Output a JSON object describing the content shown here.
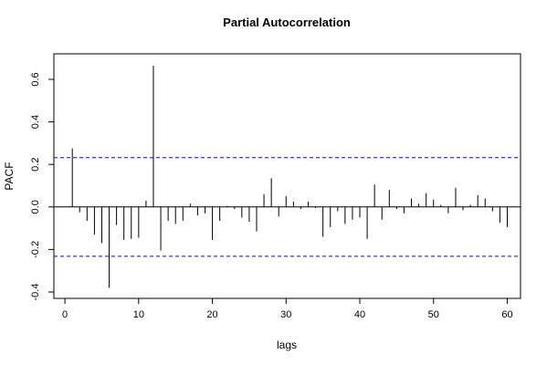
{
  "chart_data": {
    "type": "bar",
    "title": "Partial Autocorrelation",
    "xlabel": "lags",
    "ylabel": "PACF",
    "xlim": [
      -1.5,
      61.8
    ],
    "ylim": [
      -0.43,
      0.72
    ],
    "x_ticks": [
      0,
      10,
      20,
      30,
      40,
      50,
      60
    ],
    "y_ticks": [
      -0.4,
      -0.2,
      0.0,
      0.2,
      0.4,
      0.6
    ],
    "y_tick_labels": [
      "-0.4",
      "-0.2",
      "0.0",
      "0.2",
      "0.4",
      "0.6"
    ],
    "confidence_bound": 0.232,
    "ci_color": "#0000ff",
    "grid": false,
    "x": [
      1,
      2,
      3,
      4,
      5,
      6,
      7,
      8,
      9,
      10,
      11,
      12,
      13,
      14,
      15,
      16,
      17,
      18,
      19,
      20,
      21,
      22,
      23,
      24,
      25,
      26,
      27,
      28,
      29,
      30,
      31,
      32,
      33,
      34,
      35,
      36,
      37,
      38,
      39,
      40,
      41,
      42,
      43,
      44,
      45,
      46,
      47,
      48,
      49,
      50,
      51,
      52,
      53,
      54,
      55,
      56,
      57,
      58,
      59,
      60
    ],
    "values": [
      0.275,
      -0.025,
      -0.065,
      -0.13,
      -0.17,
      -0.38,
      -0.085,
      -0.155,
      -0.15,
      -0.145,
      0.03,
      0.665,
      -0.205,
      -0.065,
      -0.08,
      -0.065,
      0.015,
      -0.04,
      -0.03,
      -0.155,
      -0.065,
      0.005,
      -0.01,
      -0.05,
      -0.07,
      -0.115,
      0.06,
      0.135,
      -0.045,
      0.05,
      0.025,
      -0.01,
      0.025,
      -0.005,
      -0.14,
      -0.095,
      -0.02,
      -0.08,
      -0.06,
      -0.05,
      -0.15,
      0.105,
      -0.06,
      0.08,
      -0.01,
      -0.03,
      0.04,
      0.015,
      0.065,
      0.035,
      0.01,
      -0.03,
      0.09,
      -0.015,
      0.01,
      0.055,
      0.04,
      -0.02,
      -0.075,
      -0.095
    ]
  }
}
